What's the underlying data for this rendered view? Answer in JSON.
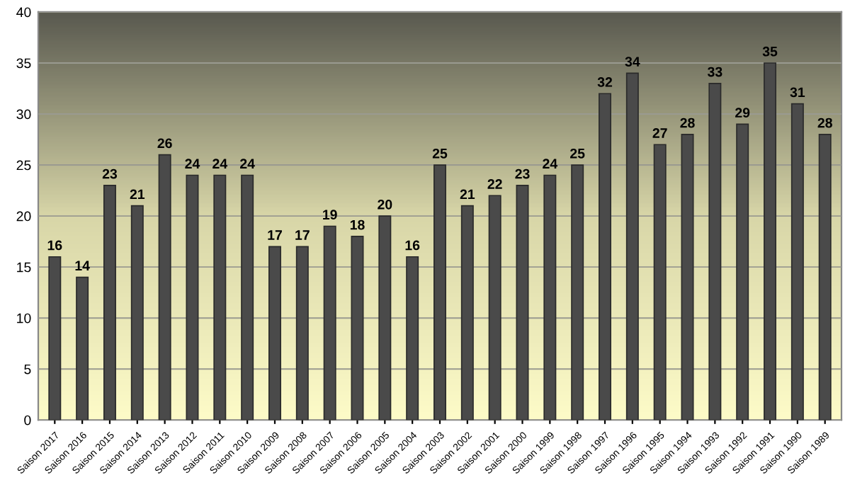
{
  "chart_data": {
    "type": "bar",
    "categories": [
      "Saison 2017",
      "Saison 2016",
      "Saison 2015",
      "Saison 2014",
      "Saison 2013",
      "Saison 2012",
      "Saison 2011",
      "Saison 2010",
      "Saison 2009",
      "Saison 2008",
      "Saison 2007",
      "Saison 2006",
      "Saison 2005",
      "Saison 2004",
      "Saison 2003",
      "Saison 2002",
      "Saison 2001",
      "Saison 2000",
      "Saison 1999",
      "Saison 1998",
      "Saison 1997",
      "Saison 1996",
      "Saison 1995",
      "Saison 1994",
      "Saison 1993",
      "Saison 1992",
      "Saison 1991",
      "Saison 1990",
      "Saison 1989"
    ],
    "values": [
      16,
      14,
      23,
      21,
      26,
      24,
      24,
      24,
      17,
      17,
      19,
      18,
      20,
      16,
      25,
      21,
      22,
      23,
      24,
      25,
      32,
      34,
      27,
      28,
      33,
      29,
      35,
      31,
      28
    ],
    "color": "#4a4a4a",
    "ylim": [
      0,
      40
    ],
    "yticks": [
      0,
      5,
      10,
      15,
      20,
      25,
      30,
      35,
      40
    ],
    "grid": "y",
    "data_labels": true
  }
}
